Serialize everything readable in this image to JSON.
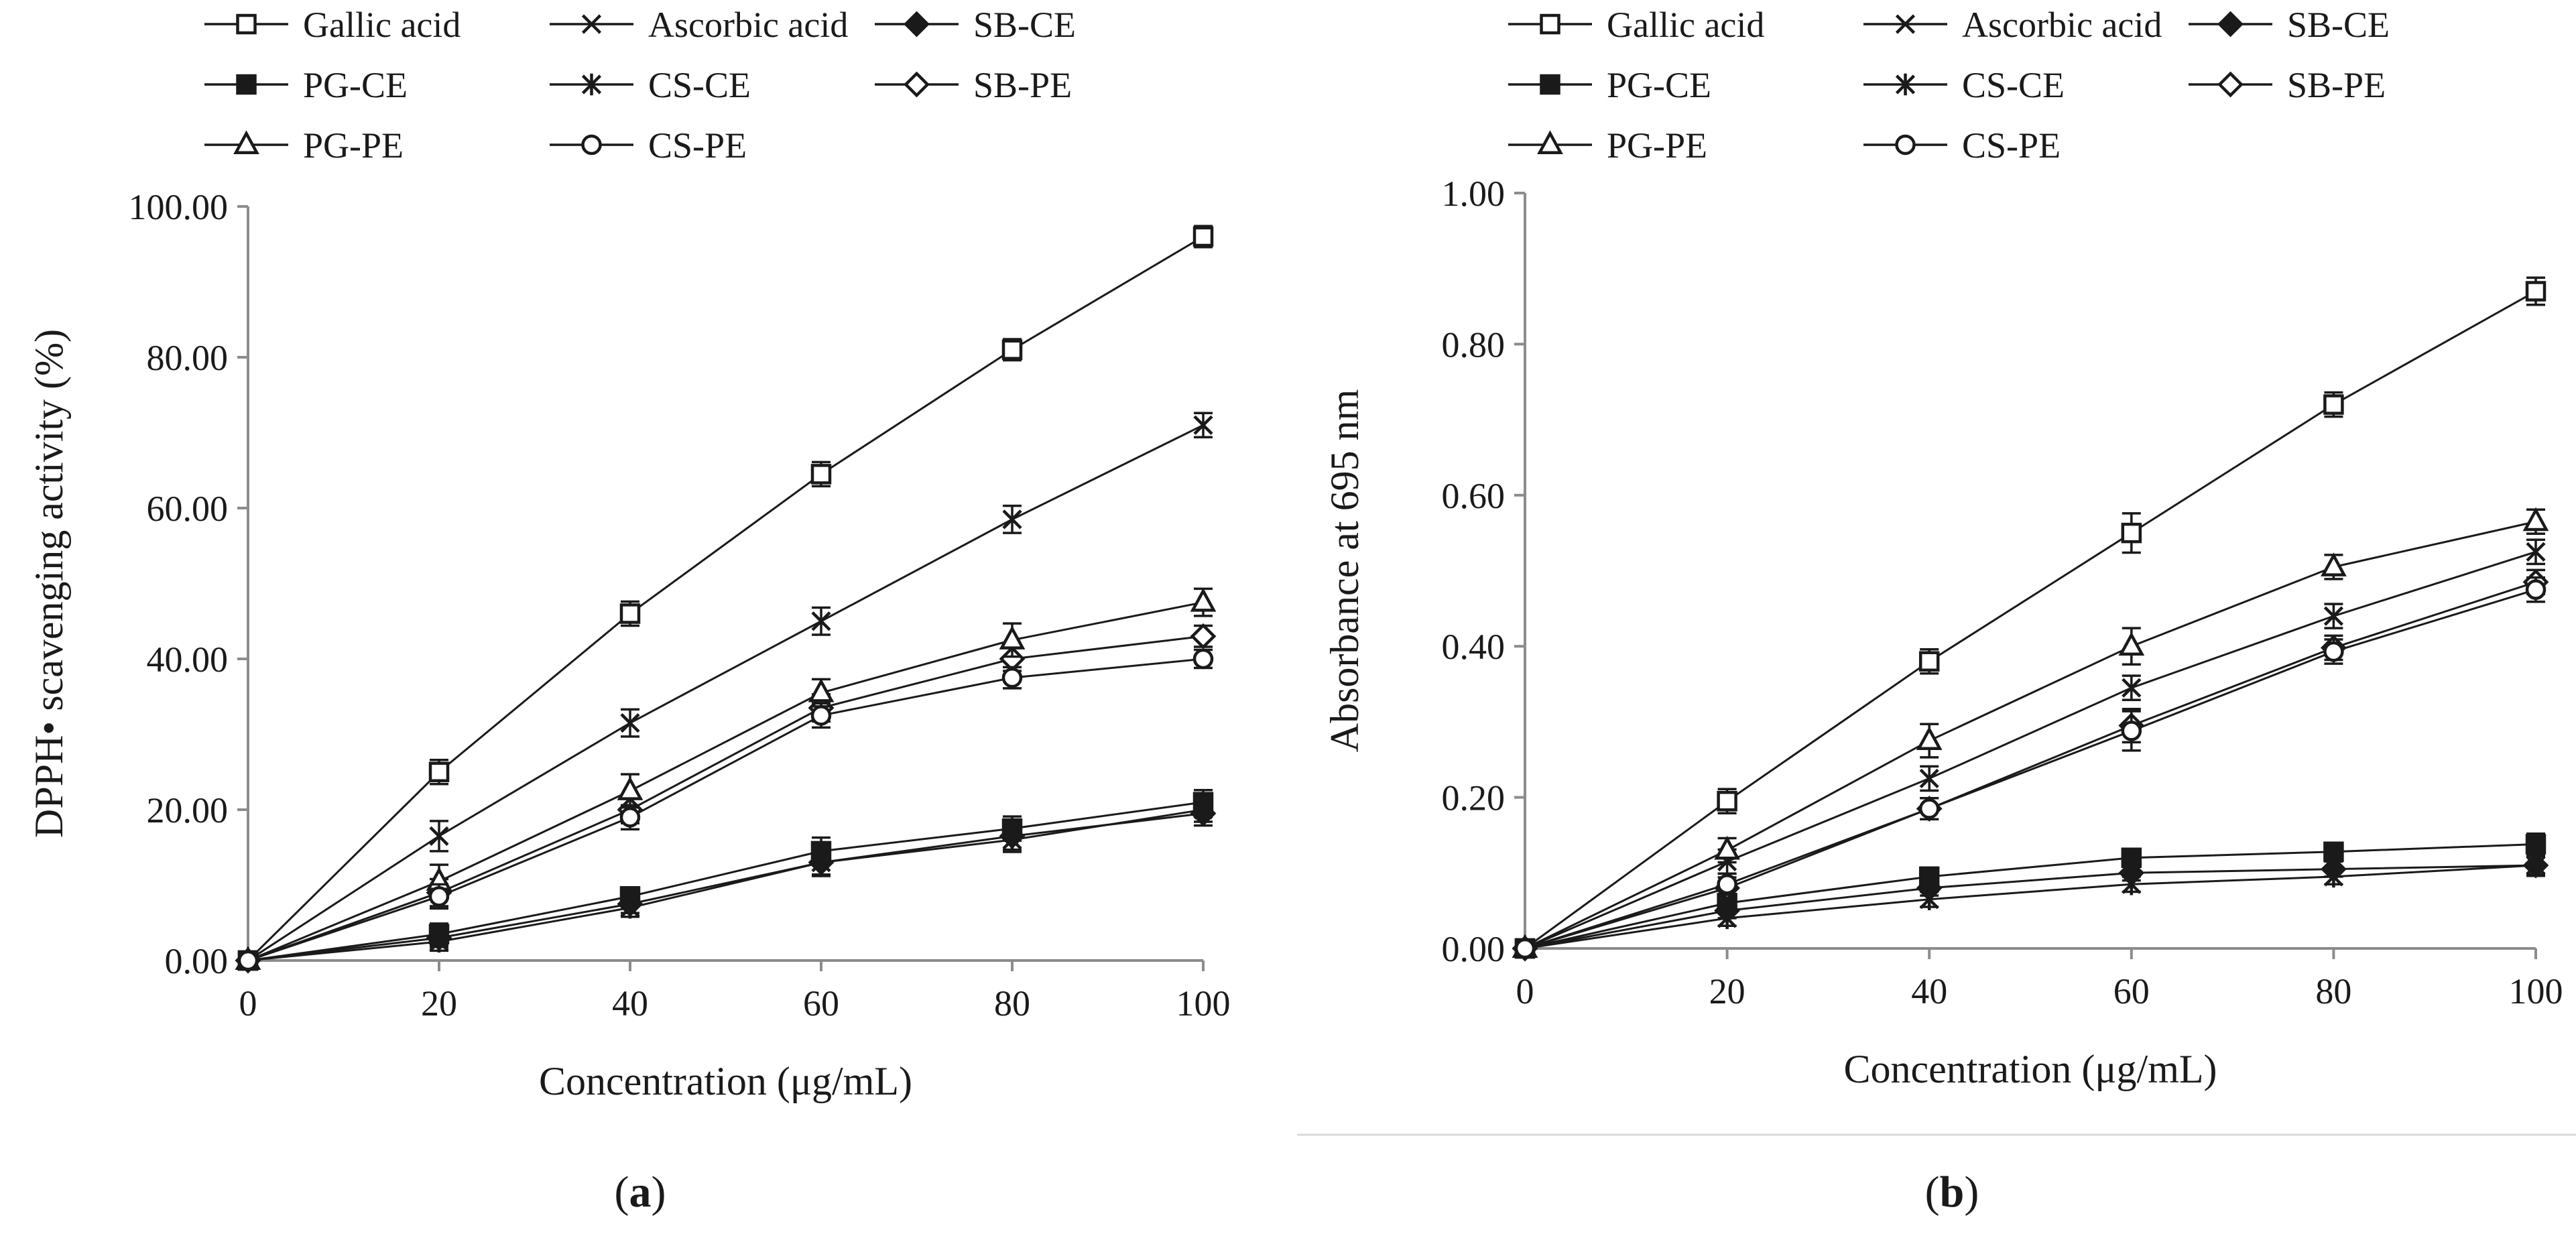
{
  "chart_data": [
    {
      "id": "a",
      "type": "line",
      "panel_label": "a",
      "title": "",
      "xlabel": "Concentration (μg/mL)",
      "ylabel": "DPPH• scavenging activity (%)",
      "x": [
        0,
        20,
        40,
        60,
        80,
        100
      ],
      "xlim": [
        0,
        100
      ],
      "ylim": [
        0,
        100
      ],
      "x_ticks": [
        "0",
        "20",
        "40",
        "60",
        "80",
        "100"
      ],
      "y_ticks": [
        "0.00",
        "20.00",
        "40.00",
        "60.00",
        "80.00",
        "100.00"
      ],
      "legend_position": "top",
      "series": [
        {
          "name": "Gallic acid",
          "marker": "square-open",
          "values": [
            0,
            25.0,
            46.0,
            64.5,
            81.0,
            96.0
          ],
          "errors": [
            0.6,
            1.6,
            1.6,
            1.6,
            1.4,
            1.4
          ]
        },
        {
          "name": "Ascorbic acid",
          "marker": "x",
          "values": [
            0,
            16.5,
            31.5,
            45.0,
            58.5,
            71.0
          ],
          "errors": [
            0.6,
            2.0,
            1.8,
            1.8,
            1.8,
            1.6
          ]
        },
        {
          "name": "SB-CE",
          "marker": "diamond-filled",
          "values": [
            0,
            3.0,
            7.5,
            13.0,
            16.5,
            19.5
          ],
          "errors": [
            0.6,
            1.2,
            1.2,
            1.8,
            1.8,
            1.6
          ]
        },
        {
          "name": "PG-CE",
          "marker": "square-filled",
          "values": [
            0,
            3.5,
            8.5,
            14.5,
            17.5,
            21.0
          ],
          "errors": [
            0.6,
            1.4,
            1.2,
            1.8,
            1.6,
            1.6
          ]
        },
        {
          "name": "CS-CE",
          "marker": "star",
          "values": [
            0,
            2.5,
            7.0,
            13.0,
            16.0,
            20.0
          ],
          "errors": [
            0.6,
            1.2,
            1.2,
            1.6,
            1.6,
            1.6
          ]
        },
        {
          "name": "SB-PE",
          "marker": "diamond-open",
          "values": [
            0,
            9.0,
            20.0,
            33.5,
            40.0,
            43.0
          ],
          "errors": [
            0.6,
            1.8,
            1.8,
            1.8,
            1.6,
            1.4
          ]
        },
        {
          "name": "PG-PE",
          "marker": "triangle-open",
          "values": [
            0,
            10.5,
            22.5,
            35.5,
            42.5,
            47.5
          ],
          "errors": [
            0.6,
            2.2,
            2.2,
            1.8,
            2.2,
            1.8
          ]
        },
        {
          "name": "CS-PE",
          "marker": "circle-open",
          "values": [
            0,
            8.5,
            19.0,
            32.5,
            37.5,
            40.0
          ],
          "errors": [
            0.6,
            1.6,
            1.6,
            1.6,
            1.4,
            1.2
          ]
        }
      ]
    },
    {
      "id": "b",
      "type": "line",
      "panel_label": "b",
      "title": "",
      "xlabel": "Concentration (μg/mL)",
      "ylabel": "Absorbance at 695 nm",
      "x": [
        0,
        20,
        40,
        60,
        80,
        100
      ],
      "xlim": [
        0,
        100
      ],
      "ylim": [
        0,
        1
      ],
      "x_ticks": [
        "0",
        "20",
        "40",
        "60",
        "80",
        "100"
      ],
      "y_ticks": [
        "0.00",
        "0.20",
        "0.40",
        "0.60",
        "0.80",
        "1.00"
      ],
      "legend_position": "top",
      "series": [
        {
          "name": "Gallic acid",
          "marker": "square-open",
          "values": [
            0,
            0.195,
            0.38,
            0.55,
            0.72,
            0.87
          ],
          "errors": [
            0.006,
            0.016,
            0.016,
            0.026,
            0.016,
            0.018
          ]
        },
        {
          "name": "Ascorbic acid",
          "marker": "x",
          "values": [
            0,
            0.115,
            0.225,
            0.345,
            0.44,
            0.525
          ],
          "errors": [
            0.006,
            0.016,
            0.016,
            0.016,
            0.016,
            0.016
          ]
        },
        {
          "name": "SB-CE",
          "marker": "diamond-filled",
          "values": [
            0,
            0.05,
            0.08,
            0.1,
            0.105,
            0.11
          ],
          "errors": [
            0.004,
            0.01,
            0.01,
            0.01,
            0.01,
            0.012
          ]
        },
        {
          "name": "PG-CE",
          "marker": "square-filled",
          "values": [
            0,
            0.06,
            0.095,
            0.12,
            0.128,
            0.138
          ],
          "errors": [
            0.004,
            0.012,
            0.012,
            0.01,
            0.01,
            0.014
          ]
        },
        {
          "name": "CS-CE",
          "marker": "star",
          "values": [
            0,
            0.04,
            0.065,
            0.085,
            0.095,
            0.11
          ],
          "errors": [
            0.004,
            0.01,
            0.01,
            0.01,
            0.01,
            0.014
          ]
        },
        {
          "name": "SB-PE",
          "marker": "diamond-open",
          "values": [
            0,
            0.08,
            0.185,
            0.295,
            0.398,
            0.485
          ],
          "errors": [
            0.006,
            0.014,
            0.014,
            0.022,
            0.016,
            0.016
          ]
        },
        {
          "name": "PG-PE",
          "marker": "triangle-open",
          "values": [
            0,
            0.13,
            0.275,
            0.4,
            0.505,
            0.565
          ],
          "errors": [
            0.006,
            0.016,
            0.022,
            0.024,
            0.016,
            0.016
          ]
        },
        {
          "name": "CS-PE",
          "marker": "circle-open",
          "values": [
            0,
            0.085,
            0.185,
            0.288,
            0.393,
            0.475
          ],
          "errors": [
            0.006,
            0.014,
            0.014,
            0.026,
            0.016,
            0.016
          ]
        }
      ]
    }
  ]
}
